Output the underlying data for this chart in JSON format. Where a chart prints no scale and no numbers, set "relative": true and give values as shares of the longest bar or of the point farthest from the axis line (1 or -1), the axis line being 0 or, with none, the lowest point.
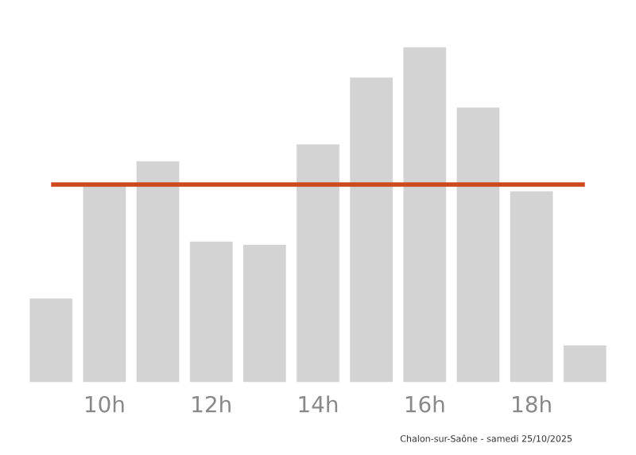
{
  "chart_data": {
    "type": "bar",
    "relative": true,
    "categories": [
      null,
      "10h",
      null,
      "12h",
      null,
      "14h",
      null,
      "16h",
      null,
      "18h",
      null
    ],
    "values": [
      0.25,
      0.59,
      0.66,
      0.42,
      0.41,
      0.71,
      0.91,
      1,
      0.82,
      0.57,
      0.11
    ],
    "color": "#d3d3d3",
    "grid": false,
    "legend": false,
    "ref_lines": [
      {
        "axis": "y",
        "value": 0.59,
        "color": "#cc4a1a",
        "line_style": "solid"
      }
    ],
    "annotations": [
      "Chalon-sur-Saône - samedi 25/10/2025"
    ]
  }
}
